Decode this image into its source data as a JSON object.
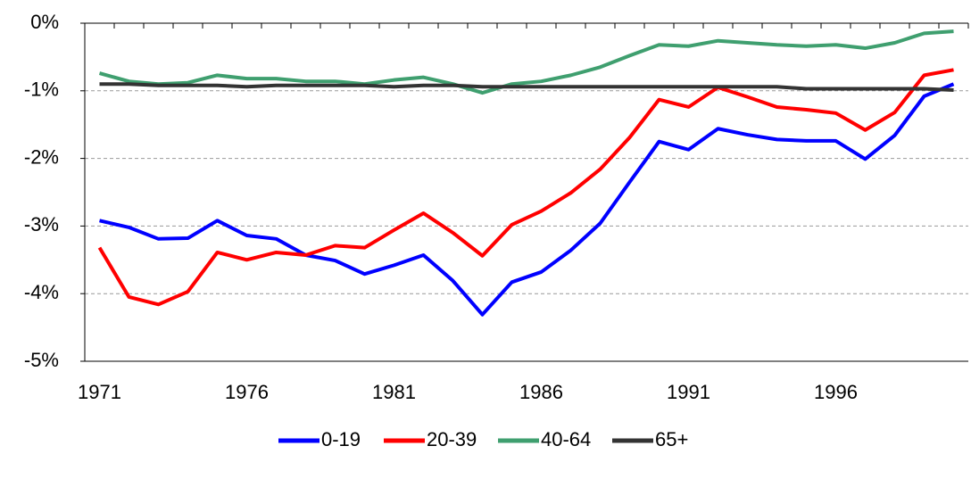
{
  "chart_data": {
    "type": "line",
    "categories": [
      "1971",
      null,
      null,
      null,
      null,
      "1976",
      null,
      null,
      null,
      null,
      "1981",
      null,
      null,
      null,
      null,
      "1986",
      null,
      null,
      null,
      null,
      "1991",
      null,
      null,
      null,
      null,
      "1996",
      null,
      null,
      null,
      null
    ],
    "ylim": [
      -5,
      0
    ],
    "yticks": [
      {
        "value": 0,
        "label": "0%"
      },
      {
        "value": -1,
        "label": "-1%"
      },
      {
        "value": -2,
        "label": "-2%"
      },
      {
        "value": -3,
        "label": "-3%"
      },
      {
        "value": -4,
        "label": "-4%"
      },
      {
        "value": -5,
        "label": "-5%"
      }
    ],
    "grid": true,
    "legend": "bottom",
    "series": [
      {
        "name": "0-19",
        "color": "#0000ff",
        "values": [
          -2.92,
          -3.02,
          -3.19,
          -3.18,
          -2.92,
          -3.14,
          -3.19,
          -3.43,
          -3.51,
          -3.71,
          -3.58,
          -3.43,
          -3.81,
          -4.31,
          -3.83,
          -3.68,
          -3.36,
          -2.96,
          -2.35,
          -1.75,
          -1.87,
          -1.56,
          -1.65,
          -1.72,
          -1.74,
          -1.74,
          -2.01,
          -1.66,
          -1.08,
          -0.9
        ]
      },
      {
        "name": "20-39",
        "color": "#ff0000",
        "values": [
          -3.32,
          -4.05,
          -4.16,
          -3.97,
          -3.39,
          -3.5,
          -3.39,
          -3.43,
          -3.29,
          -3.32,
          -3.06,
          -2.81,
          -3.1,
          -3.44,
          -2.98,
          -2.78,
          -2.51,
          -2.16,
          -1.69,
          -1.13,
          -1.24,
          -0.95,
          -1.09,
          -1.24,
          -1.28,
          -1.33,
          -1.58,
          -1.32,
          -0.77,
          -0.69
        ]
      },
      {
        "name": "40-64",
        "color": "#3f9f6f",
        "values": [
          -0.74,
          -0.86,
          -0.9,
          -0.88,
          -0.77,
          -0.82,
          -0.82,
          -0.86,
          -0.86,
          -0.9,
          -0.84,
          -0.8,
          -0.9,
          -1.03,
          -0.9,
          -0.86,
          -0.77,
          -0.65,
          -0.48,
          -0.32,
          -0.34,
          -0.26,
          -0.29,
          -0.32,
          -0.34,
          -0.32,
          -0.37,
          -0.29,
          -0.15,
          -0.12
        ]
      },
      {
        "name": "65+",
        "color": "#333333",
        "values": [
          -0.9,
          -0.9,
          -0.92,
          -0.92,
          -0.92,
          -0.94,
          -0.92,
          -0.92,
          -0.92,
          -0.92,
          -0.94,
          -0.92,
          -0.92,
          -0.94,
          -0.94,
          -0.94,
          -0.94,
          -0.94,
          -0.94,
          -0.94,
          -0.94,
          -0.94,
          -0.94,
          -0.94,
          -0.97,
          -0.97,
          -0.97,
          -0.97,
          -0.97,
          -0.99
        ]
      }
    ]
  }
}
